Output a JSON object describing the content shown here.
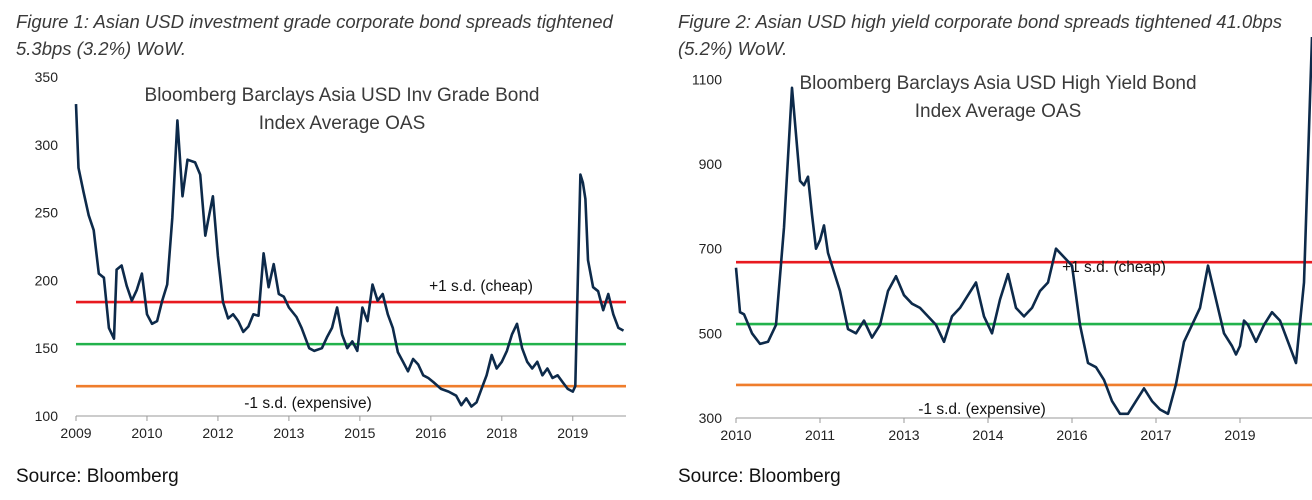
{
  "figures": [
    {
      "caption": "Figure 1: Asian USD investment grade corporate bond spreads tightened 5.3bps (3.2%) WoW.",
      "source": "Source: Bloomberg"
    },
    {
      "caption": "Figure 2: Asian USD high yield corporate bond spreads tightened 41.0bps (5.2%) WoW.",
      "source": "Source: Bloomberg"
    }
  ],
  "colors": {
    "series": "#0d2a4a",
    "upper": "#e8191f",
    "mean": "#22b24c",
    "lower": "#ef7d2c",
    "axis": "#9a9a9a"
  },
  "chart_data": [
    {
      "type": "line",
      "title_lines": [
        "Bloomberg Barclays Asia USD Inv Grade Bond",
        "Index Average OAS"
      ],
      "x_tick_labels": [
        "2009",
        "2010",
        "2012",
        "2013",
        "2015",
        "2016",
        "2018",
        "2019"
      ],
      "x_tick_values": [
        2009.0,
        2010.4,
        2011.8,
        2013.2,
        2014.6,
        2016.0,
        2017.4,
        2018.8
      ],
      "xlim": [
        2009.0,
        2019.85
      ],
      "ylim": [
        100,
        350
      ],
      "y_ticks": [
        100,
        150,
        200,
        250,
        300,
        350
      ],
      "reference_lines": [
        {
          "label": "+1 s.d. (cheap)",
          "value": 184,
          "color_key": "upper"
        },
        {
          "label": "",
          "value": 153,
          "color_key": "mean"
        },
        {
          "label": "-1 s.d. (expensive)",
          "value": 122,
          "color_key": "lower"
        }
      ],
      "series": [
        {
          "x": [
            2009.0,
            2009.05,
            2009.15,
            2009.25,
            2009.35,
            2009.45,
            2009.55,
            2009.65,
            2009.75,
            2009.8,
            2009.9,
            2010.0,
            2010.1,
            2010.2,
            2010.3,
            2010.4,
            2010.5,
            2010.6,
            2010.7,
            2010.8,
            2010.9,
            2011.0,
            2011.1,
            2011.2,
            2011.35,
            2011.45,
            2011.55,
            2011.6,
            2011.7,
            2011.8,
            2011.9,
            2012.0,
            2012.1,
            2012.2,
            2012.3,
            2012.4,
            2012.5,
            2012.6,
            2012.7,
            2012.8,
            2012.9,
            2013.0,
            2013.1,
            2013.2,
            2013.35,
            2013.45,
            2013.6,
            2013.7,
            2013.85,
            2013.95,
            2014.05,
            2014.15,
            2014.25,
            2014.35,
            2014.45,
            2014.55,
            2014.65,
            2014.75,
            2014.85,
            2014.95,
            2015.05,
            2015.15,
            2015.25,
            2015.35,
            2015.45,
            2015.55,
            2015.65,
            2015.75,
            2015.85,
            2015.95,
            2016.05,
            2016.2,
            2016.35,
            2016.5,
            2016.6,
            2016.7,
            2016.8,
            2016.9,
            2017.0,
            2017.1,
            2017.2,
            2017.3,
            2017.4,
            2017.5,
            2017.6,
            2017.7,
            2017.8,
            2017.9,
            2018.0,
            2018.1,
            2018.2,
            2018.3,
            2018.4,
            2018.5,
            2018.6,
            2018.7,
            2018.8,
            2018.85,
            2018.9,
            2018.95,
            2019.0,
            2019.05,
            2019.1,
            2019.2,
            2019.3,
            2019.4,
            2019.5,
            2019.6,
            2019.7,
            2019.8
          ],
          "y": [
            330,
            283,
            265,
            248,
            237,
            205,
            202,
            165,
            157,
            208,
            211,
            196,
            185,
            193,
            205,
            175,
            168,
            170,
            185,
            197,
            246,
            318,
            262,
            289,
            287,
            278,
            233,
            243,
            262,
            218,
            184,
            172,
            175,
            170,
            162,
            166,
            175,
            174,
            220,
            195,
            212,
            190,
            188,
            180,
            173,
            165,
            150,
            148,
            150,
            158,
            165,
            180,
            160,
            150,
            155,
            148,
            180,
            170,
            197,
            185,
            190,
            175,
            165,
            147,
            140,
            133,
            142,
            138,
            130,
            128,
            125,
            120,
            118,
            115,
            108,
            113,
            107,
            110,
            120,
            130,
            145,
            135,
            140,
            148,
            160,
            168,
            150,
            140,
            135,
            140,
            130,
            135,
            128,
            130,
            125,
            120,
            118,
            122,
            200,
            278,
            272,
            260,
            215,
            195,
            192,
            178,
            190,
            175,
            165,
            163
          ]
        }
      ]
    },
    {
      "type": "line",
      "title_lines": [
        "Bloomberg Barclays Asia USD High Yield Bond",
        "Index Average OAS"
      ],
      "x_tick_labels": [
        "2010",
        "2011",
        "2013",
        "2014",
        "2016",
        "2017",
        "2019"
      ],
      "x_tick_values": [
        2010.0,
        2011.05,
        2012.1,
        2013.15,
        2014.2,
        2015.25,
        2016.3
      ],
      "xlim": [
        2010.0,
        2017.2
      ],
      "ylim": [
        300,
        1200
      ],
      "y_ticks": [
        300,
        500,
        700,
        900,
        1100
      ],
      "reference_lines": [
        {
          "label": "+1 s.d. (cheap)",
          "value": 668,
          "color_key": "upper"
        },
        {
          "label": "",
          "value": 522,
          "color_key": "mean"
        },
        {
          "label": "-1 s.d. (expensive)",
          "value": 378,
          "color_key": "lower"
        }
      ],
      "series": [
        {
          "x": [
            2010.0,
            2010.05,
            2010.1,
            2010.2,
            2010.3,
            2010.4,
            2010.5,
            2010.6,
            2010.7,
            2010.8,
            2010.85,
            2010.9,
            2010.95,
            2011.0,
            2011.05,
            2011.1,
            2011.15,
            2011.2,
            2011.3,
            2011.4,
            2011.5,
            2011.6,
            2011.7,
            2011.8,
            2011.9,
            2012.0,
            2012.1,
            2012.2,
            2012.3,
            2012.4,
            2012.5,
            2012.6,
            2012.7,
            2012.8,
            2012.9,
            2013.0,
            2013.1,
            2013.2,
            2013.3,
            2013.4,
            2013.5,
            2013.6,
            2013.7,
            2013.8,
            2013.9,
            2014.0,
            2014.1,
            2014.2,
            2014.3,
            2014.4,
            2014.5,
            2014.6,
            2014.7,
            2014.8,
            2014.9,
            2015.0,
            2015.1,
            2015.2,
            2015.3,
            2015.4,
            2015.5,
            2015.6,
            2015.7,
            2015.8,
            2015.9,
            2016.0,
            2016.1,
            2016.2,
            2016.25,
            2016.3,
            2016.35,
            2016.4,
            2016.45,
            2016.5,
            2016.6,
            2016.7,
            2016.8,
            2016.9,
            2017.0,
            2017.1,
            2017.2
          ],
          "y": [
            655,
            550,
            545,
            500,
            475,
            480,
            520,
            750,
            1080,
            860,
            850,
            870,
            780,
            700,
            720,
            755,
            690,
            660,
            600,
            510,
            500,
            530,
            490,
            520,
            600,
            635,
            590,
            570,
            560,
            540,
            520,
            480,
            540,
            560,
            590,
            620,
            540,
            500,
            580,
            640,
            560,
            540,
            560,
            600,
            620,
            700,
            680,
            660,
            520,
            430,
            420,
            390,
            340,
            310,
            310,
            340,
            370,
            340,
            320,
            310,
            380,
            480,
            520,
            560,
            660,
            580,
            500,
            470,
            450,
            470,
            530,
            520,
            500,
            480,
            520,
            550,
            530,
            480,
            430,
            620,
            1200
          ]
        }
      ]
    }
  ]
}
